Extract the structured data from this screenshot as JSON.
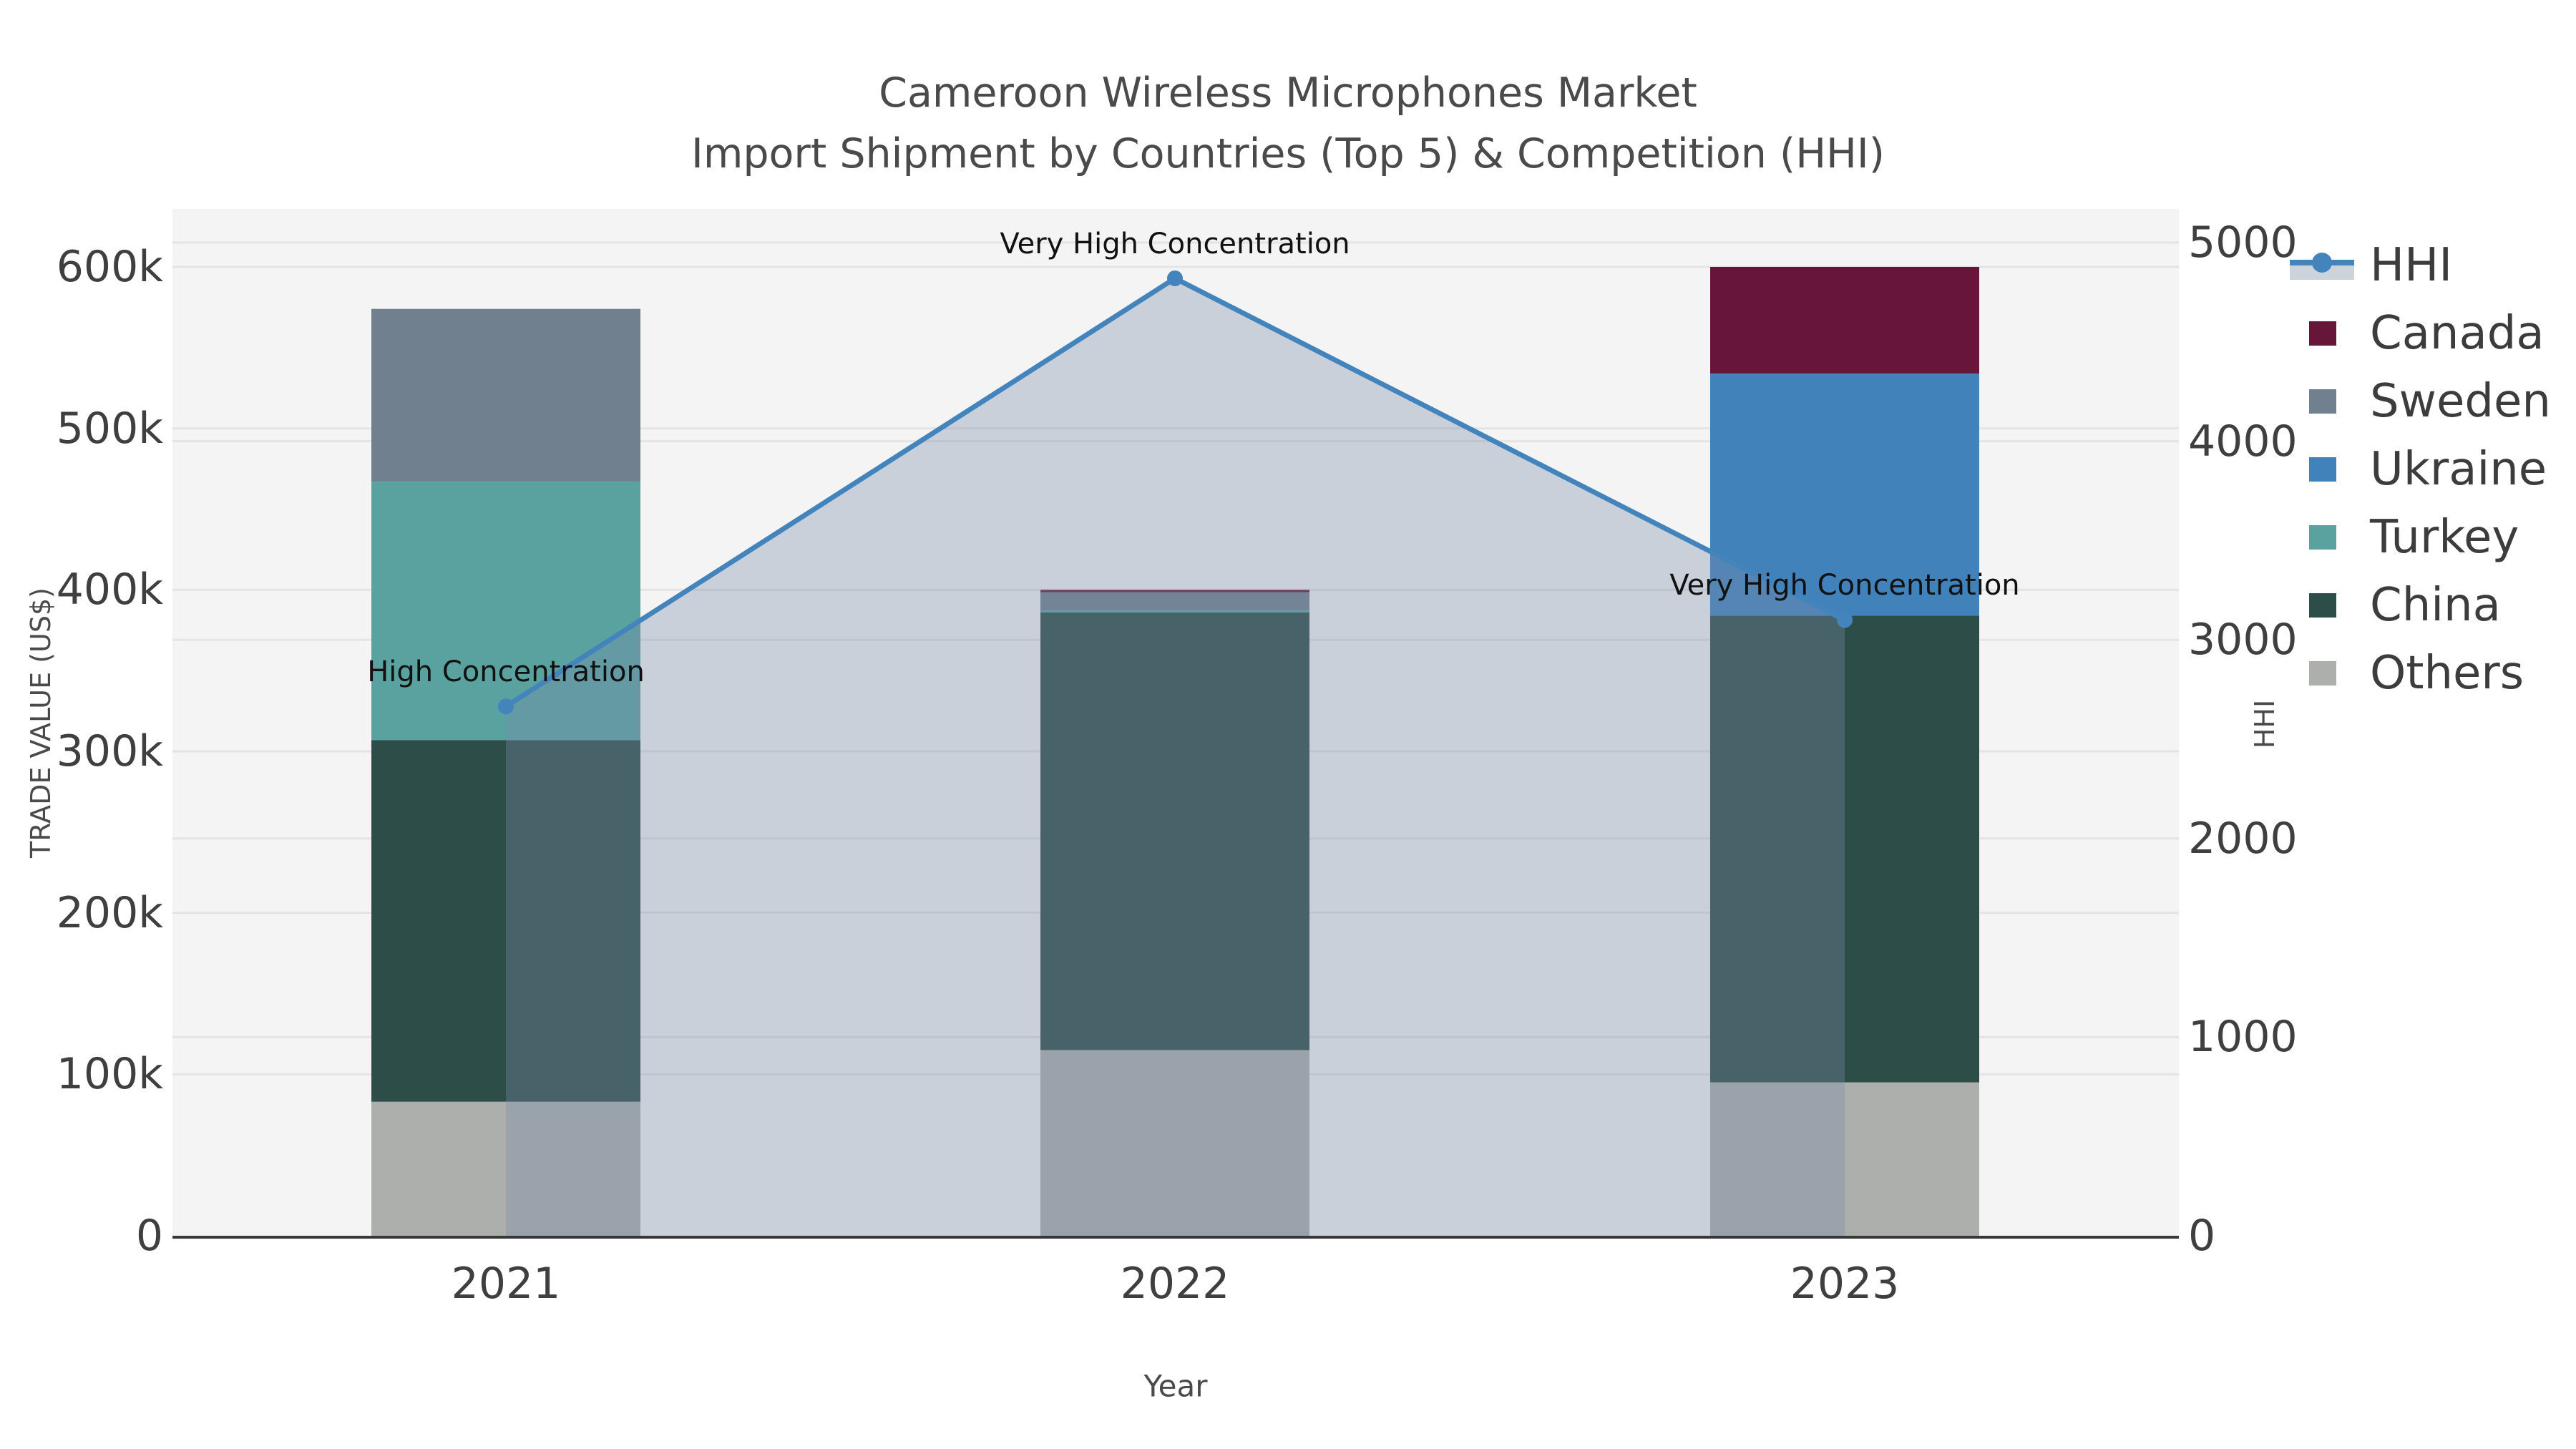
{
  "title": {
    "line1": "Cameroon Wireless Microphones Market",
    "line2": "Import Shipment by Countries (Top 5) & Competition (HHI)"
  },
  "axes": {
    "x": {
      "title": "Year",
      "ticks": [
        "2021",
        "2022",
        "2023"
      ]
    },
    "y_left": {
      "title": "TRADE VALUE (US$)",
      "ticks": [
        {
          "label": "0",
          "value": 0
        },
        {
          "label": "100k",
          "value": 100000
        },
        {
          "label": "200k",
          "value": 200000
        },
        {
          "label": "300k",
          "value": 300000
        },
        {
          "label": "400k",
          "value": 400000
        },
        {
          "label": "500k",
          "value": 500000
        },
        {
          "label": "600k",
          "value": 600000
        }
      ]
    },
    "y_right": {
      "title": "HHI",
      "ticks": [
        {
          "label": "0",
          "value": 0
        },
        {
          "label": "1000",
          "value": 1000
        },
        {
          "label": "2000",
          "value": 2000
        },
        {
          "label": "3000",
          "value": 3000
        },
        {
          "label": "4000",
          "value": 4000
        },
        {
          "label": "5000",
          "value": 5000
        }
      ]
    }
  },
  "legend": [
    {
      "label": "HHI",
      "symbol": "line",
      "color": "#4484bd"
    },
    {
      "label": "Canada",
      "symbol": "square",
      "color": "#671639"
    },
    {
      "label": "Sweden",
      "symbol": "square",
      "color": "#70808f"
    },
    {
      "label": "Ukraine",
      "symbol": "square",
      "color": "#4182ba"
    },
    {
      "label": "Turkey",
      "symbol": "square",
      "color": "#59a2a0"
    },
    {
      "label": "China",
      "symbol": "square",
      "color": "#2d4e48"
    },
    {
      "label": "Others",
      "symbol": "square",
      "color": "#adafac"
    }
  ],
  "annotations": [
    {
      "category": "2021",
      "text": "High Concentration"
    },
    {
      "category": "2022",
      "text": "Very High Concentration"
    },
    {
      "category": "2023",
      "text": "Very High Concentration"
    }
  ],
  "colors": {
    "hhi_line": "#4484bd",
    "hhi_area_fill": "rgba(121,141,170,0.35)",
    "legend_area_band": "#cdd3dc",
    "canada": "#671639",
    "sweden": "#70808f",
    "ukraine": "#4182ba",
    "turkey": "#59a2a0",
    "china": "#2d4e48",
    "others": "#adafac",
    "plot_background": "#f4f4f4",
    "gridline": "#e4e4e4",
    "axis_line": "#383838",
    "tick_text": "#3f3f3f",
    "title_text": "#4a4a4a",
    "annotation_text": "#111111"
  },
  "chart_data": {
    "type": "bar",
    "subtype": "stacked-bars-with-line-area",
    "title": "Cameroon Wireless Microphones Market — Import Shipment by Countries (Top 5) & Competition (HHI)",
    "xlabel": "Year",
    "ylabel": "TRADE VALUE (US$)",
    "y2label": "HHI",
    "categories": [
      "2021",
      "2022",
      "2023"
    ],
    "stack_order_bottom_to_top": [
      "Others",
      "China",
      "Turkey",
      "Ukraine",
      "Sweden",
      "Canada"
    ],
    "series": [
      {
        "name": "Others",
        "axis": "left",
        "values": [
          83000,
          115000,
          95000
        ]
      },
      {
        "name": "China",
        "axis": "left",
        "values": [
          224000,
          271000,
          289000
        ]
      },
      {
        "name": "Turkey",
        "axis": "left",
        "values": [
          160000,
          1500,
          0
        ]
      },
      {
        "name": "Ukraine",
        "axis": "left",
        "values": [
          0,
          0,
          150000
        ]
      },
      {
        "name": "Sweden",
        "axis": "left",
        "values": [
          107000,
          11000,
          0
        ]
      },
      {
        "name": "Canada",
        "axis": "left",
        "values": [
          0,
          1500,
          66000
        ]
      }
    ],
    "bar_totals": [
      574000,
      400000,
      600000
    ],
    "line_series": {
      "name": "HHI",
      "axis": "right",
      "values": [
        2665,
        4820,
        3100
      ],
      "fill": "to-zero"
    },
    "ylim": [
      0,
      600000
    ],
    "y2lim": [
      0,
      5000
    ],
    "grid": true,
    "legend_position": "right"
  }
}
